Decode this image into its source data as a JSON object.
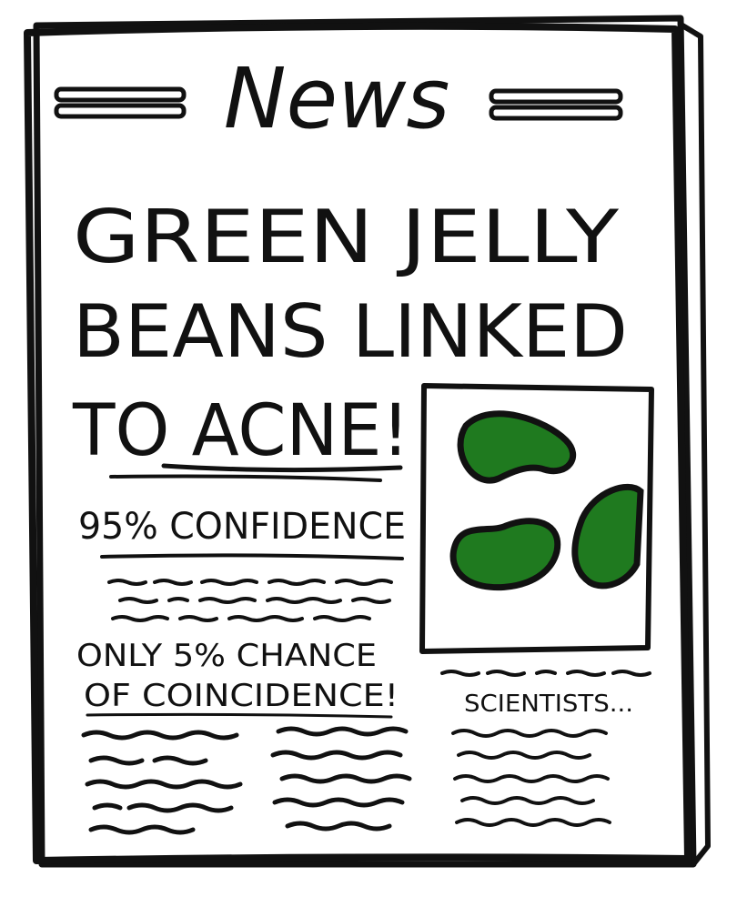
{
  "masthead": {
    "title": "News"
  },
  "headline": {
    "line1": "GREEN JELLY",
    "line2": "BEANS LINKED",
    "line3": "TO ACNE!"
  },
  "subhead": "95% CONFIDENCE",
  "pullquote": {
    "line1": "ONLY 5% CHANCE",
    "line2": "OF COINCIDENCE!"
  },
  "sidebar_caption": "SCIENTISTS...",
  "photo": {
    "subject": "green jelly beans",
    "bean_color": "#1f7a1f"
  },
  "colors": {
    "ink": "#111111",
    "paper": "#ffffff",
    "bean": "#1f7a1f"
  }
}
